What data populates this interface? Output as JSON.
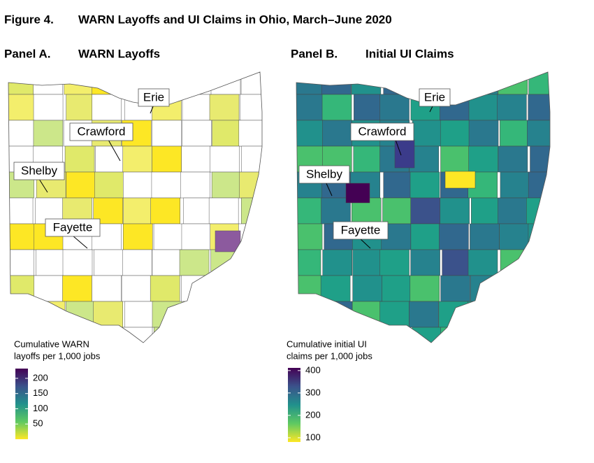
{
  "title": "Figure 4.",
  "subtitle": "WARN Layoffs and UI Claims in Ohio, March–June 2020",
  "panels": [
    {
      "label": "Panel A.",
      "title": "WARN Layoffs",
      "legend_title": [
        "Cumulative WARN",
        "layoffs per 1,000 jobs"
      ],
      "legend_range": [
        0,
        232
      ],
      "legend_ticks": [
        50,
        100,
        150,
        200
      ],
      "callouts": [
        "Erie",
        "Crawford",
        "Shelby",
        "Fayette"
      ]
    },
    {
      "label": "Panel B.",
      "title": "Initial UI Claims",
      "legend_title": [
        "Cumulative initial UI",
        "claims per 1,000 jobs"
      ],
      "legend_range": [
        81,
        412
      ],
      "legend_ticks": [
        100,
        200,
        300,
        400
      ],
      "callouts": [
        "Erie",
        "Crawford",
        "Shelby",
        "Fayette"
      ]
    }
  ]
}
